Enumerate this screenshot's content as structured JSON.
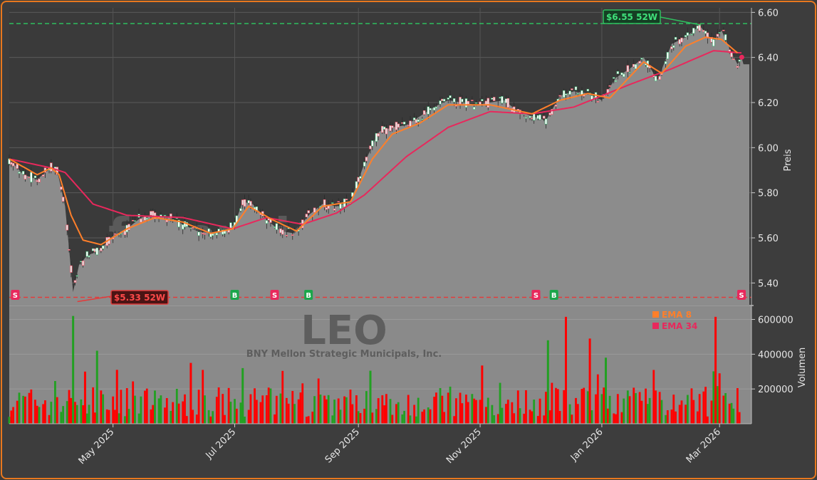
{
  "watermark": "forexsignale.trade",
  "ticker": "LEO",
  "company": "BNY Mellon Strategic Municipals, Inc.",
  "legend": [
    {
      "label": "EMA 8",
      "color": "#ff7f2a"
    },
    {
      "label": "EMA 34",
      "color": "#e8285c"
    }
  ],
  "high_52w_label": "$6.55 52W",
  "low_52w_label": "$5.33 52W",
  "colors": {
    "up": "#22a022",
    "down": "#ff0000",
    "ema8": "#ff7f2a",
    "ema34": "#e8285c",
    "area": "#8c8c8c",
    "high_line": "#2fbf5f",
    "low_line": "#e23b3b"
  },
  "chart_data": [
    {
      "type": "line",
      "title": "",
      "ylabel": "Preis",
      "ylim": [
        5.3,
        6.62
      ],
      "y_ticks": [
        "5.40",
        "5.60",
        "5.80",
        "6.00",
        "6.20",
        "6.40",
        "6.60"
      ],
      "x_tick_labels": [
        "May 2025",
        "Jul 2025",
        "Sep 2025",
        "Nov 2025",
        "Jan 2026",
        "Mar 2026"
      ],
      "x_tick_dates": [
        "2025-05-01",
        "2025-07-01",
        "2025-09-01",
        "2025-11-01",
        "2026-01-01",
        "2026-03-01"
      ],
      "x_range": [
        "2025-03-10",
        "2026-03-17"
      ],
      "high_52w": 6.55,
      "low_52w": 5.33,
      "price_points": [
        [
          "2025-03-10",
          5.95
        ],
        [
          "2025-03-17",
          5.88
        ],
        [
          "2025-03-24",
          5.86
        ],
        [
          "2025-03-31",
          5.91
        ],
        [
          "2025-04-03",
          5.9
        ],
        [
          "2025-04-07",
          5.74
        ],
        [
          "2025-04-09",
          5.55
        ],
        [
          "2025-04-11",
          5.36
        ],
        [
          "2025-04-14",
          5.48
        ],
        [
          "2025-04-18",
          5.52
        ],
        [
          "2025-04-25",
          5.55
        ],
        [
          "2025-05-01",
          5.61
        ],
        [
          "2025-05-08",
          5.64
        ],
        [
          "2025-05-15",
          5.69
        ],
        [
          "2025-05-22",
          5.7
        ],
        [
          "2025-05-29",
          5.69
        ],
        [
          "2025-06-05",
          5.66
        ],
        [
          "2025-06-12",
          5.63
        ],
        [
          "2025-06-19",
          5.62
        ],
        [
          "2025-06-26",
          5.63
        ],
        [
          "2025-07-01",
          5.66
        ],
        [
          "2025-07-05",
          5.76
        ],
        [
          "2025-07-10",
          5.75
        ],
        [
          "2025-07-17",
          5.68
        ],
        [
          "2025-07-24",
          5.63
        ],
        [
          "2025-07-31",
          5.62
        ],
        [
          "2025-08-07",
          5.7
        ],
        [
          "2025-08-14",
          5.75
        ],
        [
          "2025-08-21",
          5.74
        ],
        [
          "2025-08-28",
          5.76
        ],
        [
          "2025-09-04",
          5.93
        ],
        [
          "2025-09-11",
          6.07
        ],
        [
          "2025-09-18",
          6.09
        ],
        [
          "2025-09-25",
          6.1
        ],
        [
          "2025-10-02",
          6.14
        ],
        [
          "2025-10-09",
          6.18
        ],
        [
          "2025-10-16",
          6.21
        ],
        [
          "2025-10-23",
          6.2
        ],
        [
          "2025-10-30",
          6.19
        ],
        [
          "2025-11-06",
          6.2
        ],
        [
          "2025-11-13",
          6.21
        ],
        [
          "2025-11-20",
          6.16
        ],
        [
          "2025-11-27",
          6.14
        ],
        [
          "2025-12-04",
          6.12
        ],
        [
          "2025-12-11",
          6.23
        ],
        [
          "2025-12-18",
          6.25
        ],
        [
          "2025-12-25",
          6.24
        ],
        [
          "2026-01-01",
          6.21
        ],
        [
          "2026-01-08",
          6.31
        ],
        [
          "2026-01-15",
          6.35
        ],
        [
          "2026-01-22",
          6.4
        ],
        [
          "2026-01-29",
          6.3
        ],
        [
          "2026-02-05",
          6.46
        ],
        [
          "2026-02-12",
          6.49
        ],
        [
          "2026-02-19",
          6.54
        ],
        [
          "2026-02-26",
          6.47
        ],
        [
          "2026-03-02",
          6.52
        ],
        [
          "2026-03-06",
          6.44
        ],
        [
          "2026-03-10",
          6.37
        ],
        [
          "2026-03-12",
          6.4
        ]
      ],
      "series": [
        {
          "name": "EMA 8",
          "points": [
            [
              "2025-03-10",
              5.95
            ],
            [
              "2025-03-24",
              5.88
            ],
            [
              "2025-03-31",
              5.91
            ],
            [
              "2025-04-04",
              5.88
            ],
            [
              "2025-04-10",
              5.7
            ],
            [
              "2025-04-16",
              5.59
            ],
            [
              "2025-04-25",
              5.57
            ],
            [
              "2025-05-08",
              5.64
            ],
            [
              "2025-05-22",
              5.69
            ],
            [
              "2025-06-05",
              5.67
            ],
            [
              "2025-06-19",
              5.62
            ],
            [
              "2025-06-30",
              5.64
            ],
            [
              "2025-07-08",
              5.74
            ],
            [
              "2025-07-20",
              5.68
            ],
            [
              "2025-08-01",
              5.63
            ],
            [
              "2025-08-14",
              5.74
            ],
            [
              "2025-08-28",
              5.76
            ],
            [
              "2025-09-08",
              5.95
            ],
            [
              "2025-09-18",
              6.06
            ],
            [
              "2025-10-02",
              6.11
            ],
            [
              "2025-10-16",
              6.19
            ],
            [
              "2025-11-06",
              6.19
            ],
            [
              "2025-11-27",
              6.15
            ],
            [
              "2025-12-11",
              6.21
            ],
            [
              "2025-12-25",
              6.24
            ],
            [
              "2026-01-05",
              6.22
            ],
            [
              "2026-01-22",
              6.38
            ],
            [
              "2026-01-31",
              6.33
            ],
            [
              "2026-02-12",
              6.45
            ],
            [
              "2026-02-22",
              6.49
            ],
            [
              "2026-03-02",
              6.48
            ],
            [
              "2026-03-10",
              6.42
            ]
          ]
        },
        {
          "name": "EMA 34",
          "points": [
            [
              "2025-03-10",
              5.95
            ],
            [
              "2025-03-31",
              5.91
            ],
            [
              "2025-04-07",
              5.89
            ],
            [
              "2025-04-21",
              5.75
            ],
            [
              "2025-05-08",
              5.7
            ],
            [
              "2025-06-05",
              5.69
            ],
            [
              "2025-06-30",
              5.64
            ],
            [
              "2025-07-17",
              5.69
            ],
            [
              "2025-08-04",
              5.66
            ],
            [
              "2025-08-21",
              5.71
            ],
            [
              "2025-09-04",
              5.79
            ],
            [
              "2025-09-25",
              5.96
            ],
            [
              "2025-10-16",
              6.09
            ],
            [
              "2025-11-06",
              6.16
            ],
            [
              "2025-11-27",
              6.15
            ],
            [
              "2025-12-18",
              6.18
            ],
            [
              "2026-01-15",
              6.28
            ],
            [
              "2026-02-05",
              6.35
            ],
            [
              "2026-02-26",
              6.43
            ],
            [
              "2026-03-12",
              6.42
            ]
          ]
        }
      ],
      "signals": [
        {
          "type": "S",
          "date": "2025-03-13"
        },
        {
          "type": "B",
          "date": "2025-07-01"
        },
        {
          "type": "S",
          "date": "2025-07-21"
        },
        {
          "type": "B",
          "date": "2025-08-07"
        },
        {
          "type": "S",
          "date": "2025-11-29"
        },
        {
          "type": "B",
          "date": "2025-12-08"
        },
        {
          "type": "S",
          "date": "2026-03-12"
        }
      ]
    },
    {
      "type": "bar",
      "title": "",
      "ylabel": "Volumen",
      "ylim": [
        0,
        680000
      ],
      "y_ticks": [
        "200000",
        "400000",
        "600000"
      ],
      "x_range": [
        "2025-03-10",
        "2026-03-17"
      ],
      "bars": [
        [
          "2025-04-11",
          620000,
          "up"
        ],
        [
          "2025-04-17",
          300000,
          "down"
        ],
        [
          "2025-04-23",
          420000,
          "up"
        ],
        [
          "2025-05-03",
          310000,
          "down"
        ],
        [
          "2025-06-09",
          350000,
          "down"
        ],
        [
          "2025-07-05",
          320000,
          "up"
        ],
        [
          "2025-09-07",
          305000,
          "up"
        ],
        [
          "2025-11-02",
          335000,
          "down"
        ],
        [
          "2025-12-05",
          480000,
          "up"
        ],
        [
          "2025-12-14",
          615000,
          "down"
        ],
        [
          "2025-12-26",
          490000,
          "down"
        ],
        [
          "2026-01-03",
          380000,
          "up"
        ],
        [
          "2026-02-27",
          615000,
          "down"
        ],
        [
          "2026-03-01",
          290000,
          "down"
        ]
      ]
    }
  ]
}
